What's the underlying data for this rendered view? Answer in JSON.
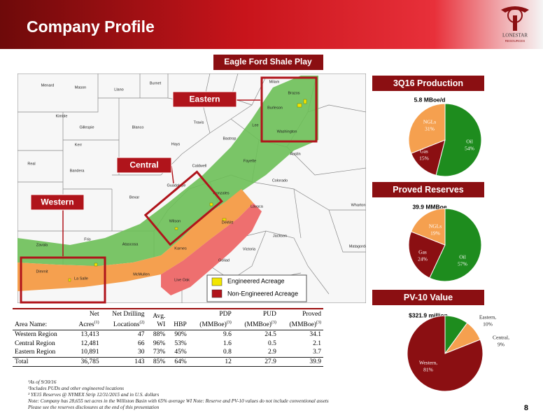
{
  "header": {
    "title": "Company Profile",
    "logo_name": "LONESTAR",
    "logo_sub": "RESOURCES"
  },
  "map": {
    "title": "Eagle Ford Shale Play",
    "regions": [
      "Eastern",
      "Central",
      "Western"
    ],
    "legend": [
      "Engineered Acreage",
      "Non-Engineered Acreage"
    ],
    "counties": [
      "Menard",
      "Mason",
      "Llano",
      "Burnet",
      "Milam",
      "Kimble",
      "Gillespie",
      "Blanco",
      "Travis",
      "Lee",
      "Burleson",
      "Brazos",
      "Washington",
      "Kerr",
      "Hays",
      "Bastrop",
      "Austin",
      "Fayette",
      "Real",
      "Bandera",
      "Caldwell",
      "Guadalupe",
      "Gonzales",
      "Colorado",
      "Bexar",
      "Lavaca",
      "Wharton",
      "Wilson",
      "DeWitt",
      "Frio",
      "Zavala",
      "Atascosa",
      "Karnes",
      "Victoria",
      "Jackson",
      "Matagorda",
      "Dimmit",
      "La Salle",
      "McMullen",
      "Live Oak",
      "Goliad",
      "Bee"
    ]
  },
  "chart_data": [
    {
      "type": "pie",
      "title": "3Q16 Production",
      "subtitle": "5.8 MBoe/d",
      "categories": [
        "Oil",
        "Gas",
        "NGLs"
      ],
      "values": [
        54,
        15,
        31
      ],
      "value_labels": [
        "54%",
        "15%",
        "31%"
      ],
      "colors": [
        "#1e8c1e",
        "#8b0f12",
        "#f5a04f"
      ]
    },
    {
      "type": "pie",
      "title": "Proved Reserves",
      "subtitle": "39.9 MMBoe",
      "categories": [
        "Oil",
        "Gas",
        "NGLs"
      ],
      "values": [
        57,
        24,
        19
      ],
      "value_labels": [
        "57%",
        "24%",
        "19%"
      ],
      "colors": [
        "#1e8c1e",
        "#8b0f12",
        "#f5a04f"
      ]
    },
    {
      "type": "pie",
      "title": "PV-10 Value",
      "subtitle": "$321.9 million",
      "categories": [
        "Eastern,",
        "Central,",
        "Western,"
      ],
      "values": [
        10,
        9,
        81
      ],
      "value_labels": [
        "10%",
        "9%",
        "81%"
      ],
      "colors": [
        "#1e8c1e",
        "#f5a04f",
        "#8b0f12"
      ]
    }
  ],
  "table": {
    "headers": [
      {
        "lines": [
          "Area Name:"
        ]
      },
      {
        "lines": [
          "Net",
          "Acres"
        ],
        "sup": "(1)"
      },
      {
        "lines": [
          "Net Drilling",
          "Locations"
        ],
        "sup": "(2)"
      },
      {
        "lines": [
          "Avg.",
          "WI"
        ]
      },
      {
        "lines": [
          "HBP"
        ]
      },
      {
        "lines": [
          "PDP",
          "(MMBoe)"
        ],
        "sup": "(3)"
      },
      {
        "lines": [
          "PUD",
          "(MMBoe)"
        ],
        "sup": "(3)"
      },
      {
        "lines": [
          "Proved",
          "(MMBoe)"
        ],
        "sup": "(3)"
      }
    ],
    "rows": [
      [
        "Western Region",
        "13,413",
        "47",
        "88%",
        "90%",
        "9.6",
        "24.5",
        "34.1"
      ],
      [
        "Central Region",
        "12,481",
        "66",
        "96%",
        "53%",
        "1.6",
        "0.5",
        "2.1"
      ],
      [
        "Eastern Region",
        "10,891",
        "30",
        "73%",
        "45%",
        "0.8",
        "2.9",
        "3.7"
      ],
      [
        "Total",
        "36,785",
        "143",
        "85%",
        "64%",
        "12",
        "27.9",
        "39.9"
      ]
    ]
  },
  "footnotes": [
    "¹As of 9/30/16",
    "²Includes PUDs and other engineered locations",
    "³ YE15 Reserves @ NYMEX Strip 12/31/2015 and in U.S. dollars",
    "Note: Company has 28,655 net acres in the Williston Basin with 65% average WI Note: Reserve and PV-10 values do not include conventional assets",
    "Please see the reserves disclosures at the end of this presentation"
  ],
  "page_number": "8"
}
